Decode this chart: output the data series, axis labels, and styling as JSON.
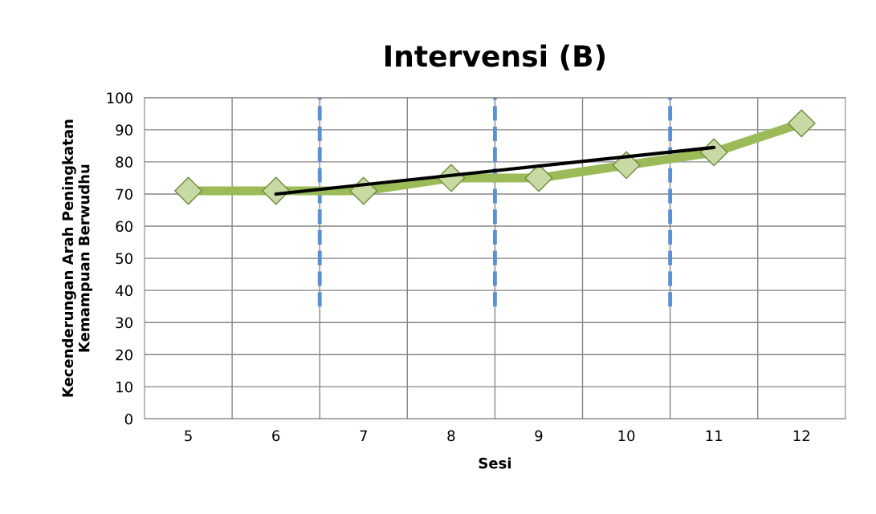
{
  "chart_data": {
    "type": "line",
    "title": "Intervensi (B)",
    "xlabel": "Sesi",
    "ylabel": "Kecenderungan Arah Peningkatan\nKemampuan Berwudhu",
    "x": [
      5,
      6,
      7,
      8,
      9,
      10,
      11,
      12
    ],
    "series": [
      {
        "color": "#9bbb59",
        "values": [
          71,
          71,
          71,
          75,
          75,
          79,
          83,
          92
        ],
        "marker": "diamond",
        "line_style": "solid"
      },
      {
        "type": "line",
        "color": "#000000",
        "x": [
          6,
          11
        ],
        "values": [
          70,
          84.5
        ],
        "marker": "none",
        "line_style": "solid"
      }
    ],
    "xlim": [
      4.5,
      12.5
    ],
    "xticks": [
      5,
      6,
      7,
      8,
      9,
      10,
      11,
      12
    ],
    "ylim": [
      0,
      100
    ],
    "yticks": [
      0,
      10,
      20,
      30,
      40,
      50,
      60,
      70,
      80,
      90,
      100
    ],
    "grid": true,
    "legend": false,
    "ref_lines": [
      {
        "axis": "x",
        "value": 6.5,
        "color": "#5b8fd6",
        "line_style": "dashed"
      },
      {
        "axis": "x",
        "value": 8.5,
        "color": "#5b8fd6",
        "line_style": "dashed"
      },
      {
        "axis": "x",
        "value": 10.5,
        "color": "#5b8fd6",
        "line_style": "dashed"
      }
    ]
  }
}
